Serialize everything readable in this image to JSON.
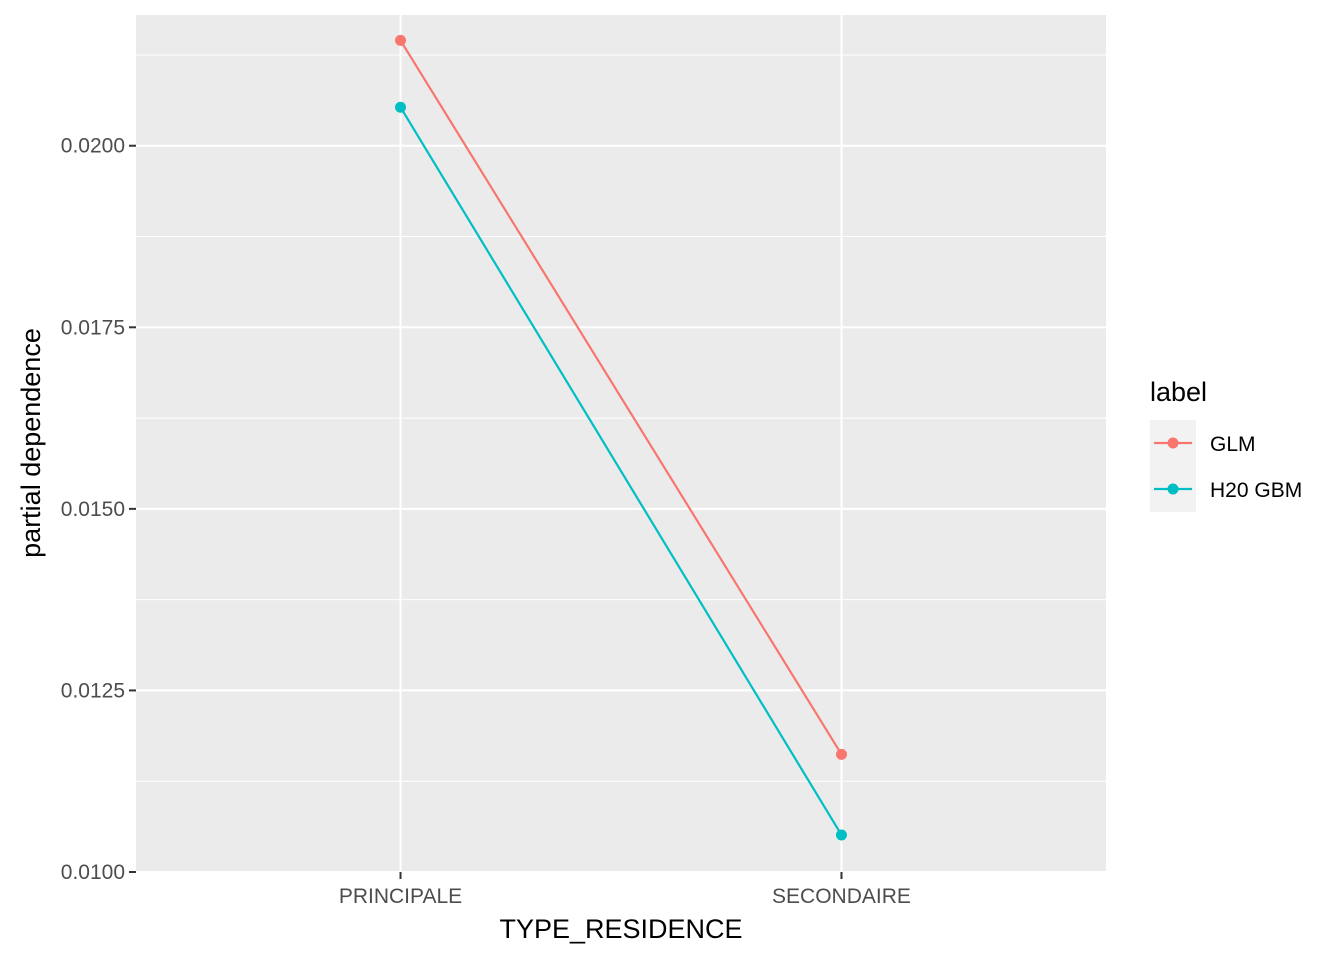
{
  "chart_data": {
    "type": "line",
    "title": "",
    "xlabel": "TYPE_RESIDENCE",
    "ylabel": "partial dependence",
    "categories": [
      "PRINCIPALE",
      "SECONDAIRE"
    ],
    "series": [
      {
        "name": "GLM",
        "color": "#F8766D",
        "values": [
          0.02145,
          0.01162
        ]
      },
      {
        "name": "H20 GBM",
        "color": "#00BFC4",
        "values": [
          0.02053,
          0.01051
        ]
      }
    ],
    "ylim": [
      0.01,
      0.0218
    ],
    "yticks": [
      0.01,
      0.0125,
      0.015,
      0.0175,
      0.02
    ],
    "ytick_labels": [
      "0.0100",
      "0.0125",
      "0.0150",
      "0.0175",
      "0.0200"
    ],
    "grid": true,
    "panel_background": "#EBEBEB",
    "legend": {
      "title": "label",
      "placement": "right"
    }
  }
}
